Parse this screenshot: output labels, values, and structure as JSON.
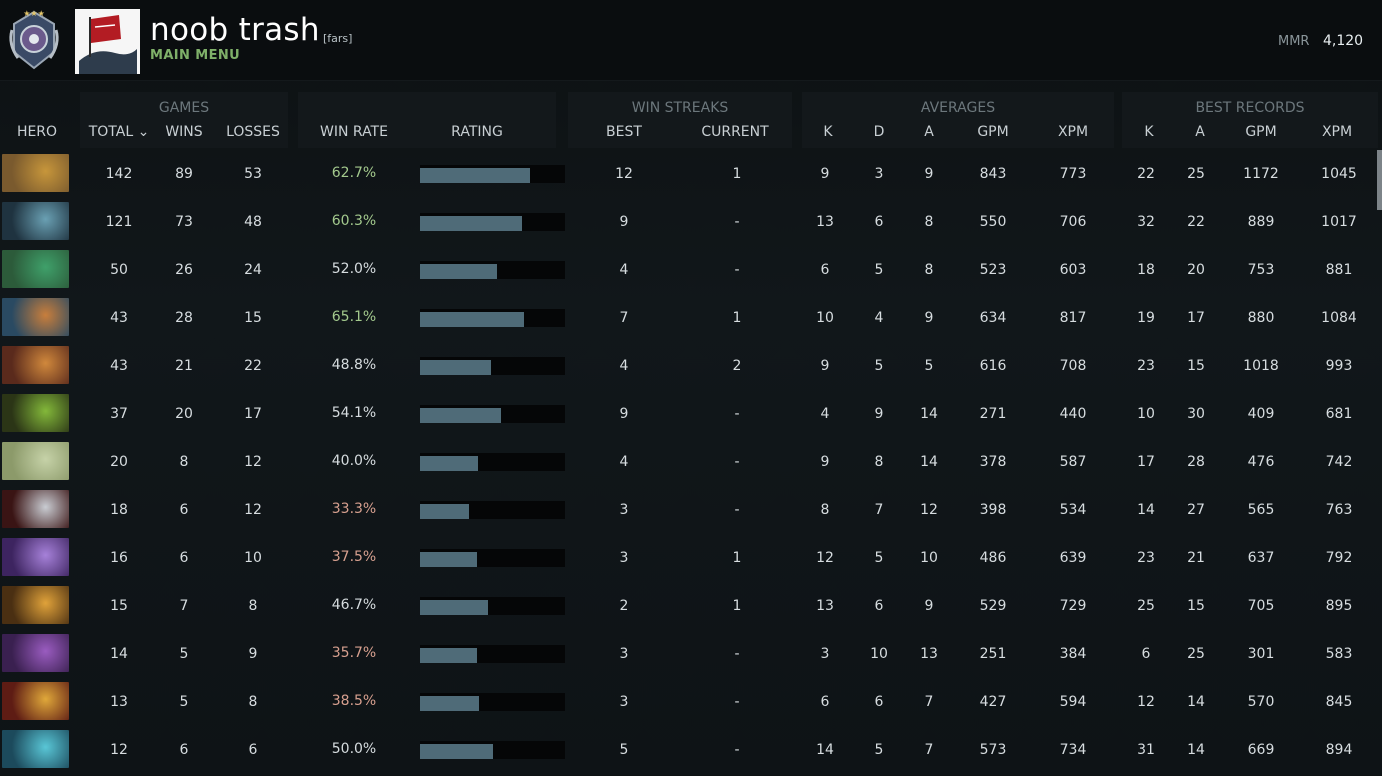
{
  "header": {
    "player_name": "noob trash",
    "player_tag": "[fars]",
    "subtitle": "MAIN MENU",
    "mmr_label": "MMR",
    "mmr_value": "4,120"
  },
  "groups": {
    "games": "GAMES",
    "win_streaks": "WIN STREAKS",
    "averages": "AVERAGES",
    "best_records": "BEST RECORDS"
  },
  "columns": {
    "hero": "HERO",
    "total": "TOTAL ⌄",
    "wins": "WINS",
    "losses": "LOSSES",
    "win_rate": "WIN RATE",
    "rating": "RATING",
    "best": "BEST",
    "current": "CURRENT",
    "avg_k": "K",
    "avg_d": "D",
    "avg_a": "A",
    "avg_gpm": "GPM",
    "avg_xpm": "XPM",
    "best_k": "K",
    "best_a": "A",
    "best_gpm": "GPM",
    "best_xpm": "XPM"
  },
  "colors": {
    "bar": "#4f6b78",
    "win_rate_good": "#a3c98d",
    "win_rate_bad": "#d7a08f",
    "subtitle": "#7fb069"
  },
  "rows": [
    {
      "total": "142",
      "wins": "89",
      "losses": "53",
      "win_rate": "62.7%",
      "rating": 0.76,
      "best": "12",
      "current": "1",
      "k": "9",
      "d": "3",
      "a": "9",
      "gpm": "843",
      "xpm": "773",
      "bk": "22",
      "ba": "25",
      "bgpm": "1172",
      "bxpm": "1045"
    },
    {
      "total": "121",
      "wins": "73",
      "losses": "48",
      "win_rate": "60.3%",
      "rating": 0.7,
      "best": "9",
      "current": "-",
      "k": "13",
      "d": "6",
      "a": "8",
      "gpm": "550",
      "xpm": "706",
      "bk": "32",
      "ba": "22",
      "bgpm": "889",
      "bxpm": "1017"
    },
    {
      "total": "50",
      "wins": "26",
      "losses": "24",
      "win_rate": "52.0%",
      "rating": 0.53,
      "best": "4",
      "current": "-",
      "k": "6",
      "d": "5",
      "a": "8",
      "gpm": "523",
      "xpm": "603",
      "bk": "18",
      "ba": "20",
      "bgpm": "753",
      "bxpm": "881"
    },
    {
      "total": "43",
      "wins": "28",
      "losses": "15",
      "win_rate": "65.1%",
      "rating": 0.72,
      "best": "7",
      "current": "1",
      "k": "10",
      "d": "4",
      "a": "9",
      "gpm": "634",
      "xpm": "817",
      "bk": "19",
      "ba": "17",
      "bgpm": "880",
      "bxpm": "1084"
    },
    {
      "total": "43",
      "wins": "21",
      "losses": "22",
      "win_rate": "48.8%",
      "rating": 0.49,
      "best": "4",
      "current": "2",
      "k": "9",
      "d": "5",
      "a": "5",
      "gpm": "616",
      "xpm": "708",
      "bk": "23",
      "ba": "15",
      "bgpm": "1018",
      "bxpm": "993"
    },
    {
      "total": "37",
      "wins": "20",
      "losses": "17",
      "win_rate": "54.1%",
      "rating": 0.56,
      "best": "9",
      "current": "-",
      "k": "4",
      "d": "9",
      "a": "14",
      "gpm": "271",
      "xpm": "440",
      "bk": "10",
      "ba": "30",
      "bgpm": "409",
      "bxpm": "681"
    },
    {
      "total": "20",
      "wins": "8",
      "losses": "12",
      "win_rate": "40.0%",
      "rating": 0.4,
      "best": "4",
      "current": "-",
      "k": "9",
      "d": "8",
      "a": "14",
      "gpm": "378",
      "xpm": "587",
      "bk": "17",
      "ba": "28",
      "bgpm": "476",
      "bxpm": "742"
    },
    {
      "total": "18",
      "wins": "6",
      "losses": "12",
      "win_rate": "33.3%",
      "rating": 0.34,
      "best": "3",
      "current": "-",
      "k": "8",
      "d": "7",
      "a": "12",
      "gpm": "398",
      "xpm": "534",
      "bk": "14",
      "ba": "27",
      "bgpm": "565",
      "bxpm": "763"
    },
    {
      "total": "16",
      "wins": "6",
      "losses": "10",
      "win_rate": "37.5%",
      "rating": 0.39,
      "best": "3",
      "current": "1",
      "k": "12",
      "d": "5",
      "a": "10",
      "gpm": "486",
      "xpm": "639",
      "bk": "23",
      "ba": "21",
      "bgpm": "637",
      "bxpm": "792"
    },
    {
      "total": "15",
      "wins": "7",
      "losses": "8",
      "win_rate": "46.7%",
      "rating": 0.47,
      "best": "2",
      "current": "1",
      "k": "13",
      "d": "6",
      "a": "9",
      "gpm": "529",
      "xpm": "729",
      "bk": "25",
      "ba": "15",
      "bgpm": "705",
      "bxpm": "895"
    },
    {
      "total": "14",
      "wins": "5",
      "losses": "9",
      "win_rate": "35.7%",
      "rating": 0.39,
      "best": "3",
      "current": "-",
      "k": "3",
      "d": "10",
      "a": "13",
      "gpm": "251",
      "xpm": "384",
      "bk": "6",
      "ba": "25",
      "bgpm": "301",
      "bxpm": "583"
    },
    {
      "total": "13",
      "wins": "5",
      "losses": "8",
      "win_rate": "38.5%",
      "rating": 0.41,
      "best": "3",
      "current": "-",
      "k": "6",
      "d": "6",
      "a": "7",
      "gpm": "427",
      "xpm": "594",
      "bk": "12",
      "ba": "14",
      "bgpm": "570",
      "bxpm": "845"
    },
    {
      "total": "12",
      "wins": "6",
      "losses": "6",
      "win_rate": "50.0%",
      "rating": 0.5,
      "best": "5",
      "current": "-",
      "k": "14",
      "d": "5",
      "a": "7",
      "gpm": "573",
      "xpm": "734",
      "bk": "31",
      "ba": "14",
      "bgpm": "669",
      "bxpm": "894"
    }
  ],
  "hero_colors": [
    [
      "#7a5a2e",
      "#c7963b"
    ],
    [
      "#1f3340",
      "#6aa0b3"
    ],
    [
      "#2c5b3a",
      "#3fa06a"
    ],
    [
      "#2a4a62",
      "#c87e3c"
    ],
    [
      "#5a2a1c",
      "#d0883c"
    ],
    [
      "#2b3516",
      "#83b83a"
    ],
    [
      "#8c9a6a",
      "#c6d2a8"
    ],
    [
      "#3a1414",
      "#c9ccd2"
    ],
    [
      "#3d2460",
      "#a681d9"
    ],
    [
      "#4a2f12",
      "#e0a23a"
    ],
    [
      "#3a2050",
      "#9a5cc0"
    ],
    [
      "#5e1c14",
      "#e0a83a"
    ],
    [
      "#1c4a5c",
      "#59c6d6"
    ]
  ]
}
